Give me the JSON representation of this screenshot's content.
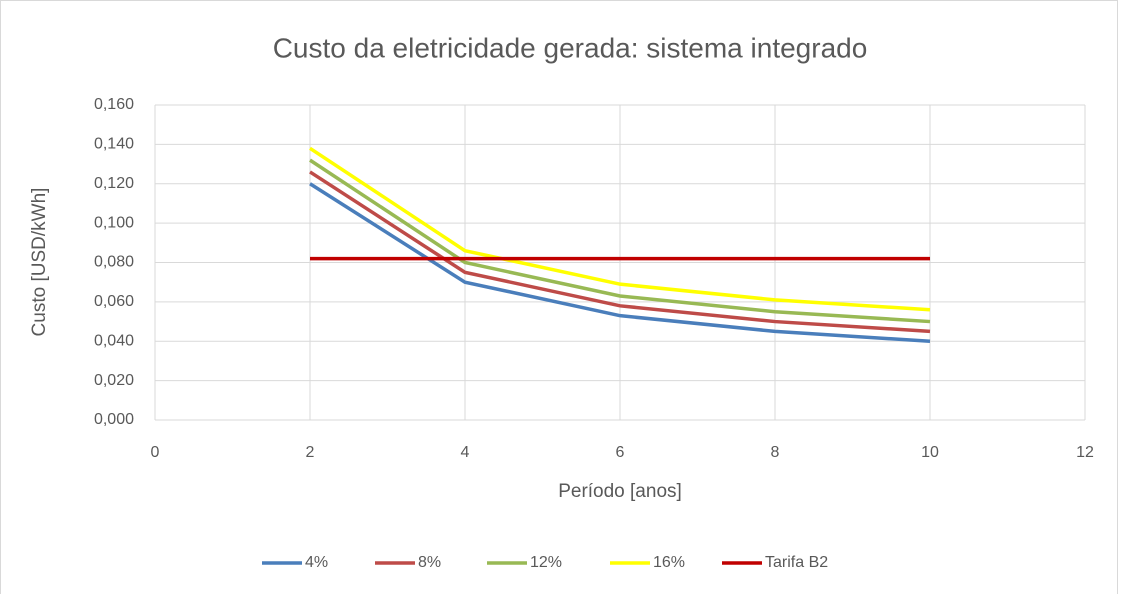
{
  "chart_data": {
    "type": "line",
    "title": "Custo da eletricidade gerada: sistema integrado",
    "xlabel": "Período [anos]",
    "ylabel": "Custo [USD/kWh]",
    "x": [
      2,
      4,
      6,
      8,
      10
    ],
    "series": [
      {
        "name": "4%",
        "color": "#4a7ebb",
        "values": [
          0.12,
          0.07,
          0.053,
          0.045,
          0.04
        ]
      },
      {
        "name": "8%",
        "color": "#be4b48",
        "values": [
          0.126,
          0.075,
          0.058,
          0.05,
          0.045
        ]
      },
      {
        "name": "12%",
        "color": "#98b954",
        "values": [
          0.132,
          0.08,
          0.063,
          0.055,
          0.05
        ]
      },
      {
        "name": "16%",
        "color": "#ffff00",
        "values": [
          0.138,
          0.086,
          0.069,
          0.061,
          0.056
        ]
      },
      {
        "name": "Tarifa B2",
        "color": "#c00000",
        "values": [
          0.082,
          0.082,
          0.082,
          0.082,
          0.082
        ]
      }
    ],
    "xlim": [
      0,
      12
    ],
    "xticks": [
      0,
      2,
      4,
      6,
      8,
      10,
      12
    ],
    "ylim": [
      0,
      0.16
    ],
    "yticks": [
      {
        "value": 0,
        "label": "0,000"
      },
      {
        "value": 0.02,
        "label": "0,020"
      },
      {
        "value": 0.04,
        "label": "0,040"
      },
      {
        "value": 0.06,
        "label": "0,060"
      },
      {
        "value": 0.08,
        "label": "0,080"
      },
      {
        "value": 0.1,
        "label": "0,100"
      },
      {
        "value": 0.12,
        "label": "0,120"
      },
      {
        "value": 0.14,
        "label": "0,140"
      },
      {
        "value": 0.16,
        "label": "0,160"
      }
    ],
    "grid": true,
    "legend": "bottom"
  }
}
